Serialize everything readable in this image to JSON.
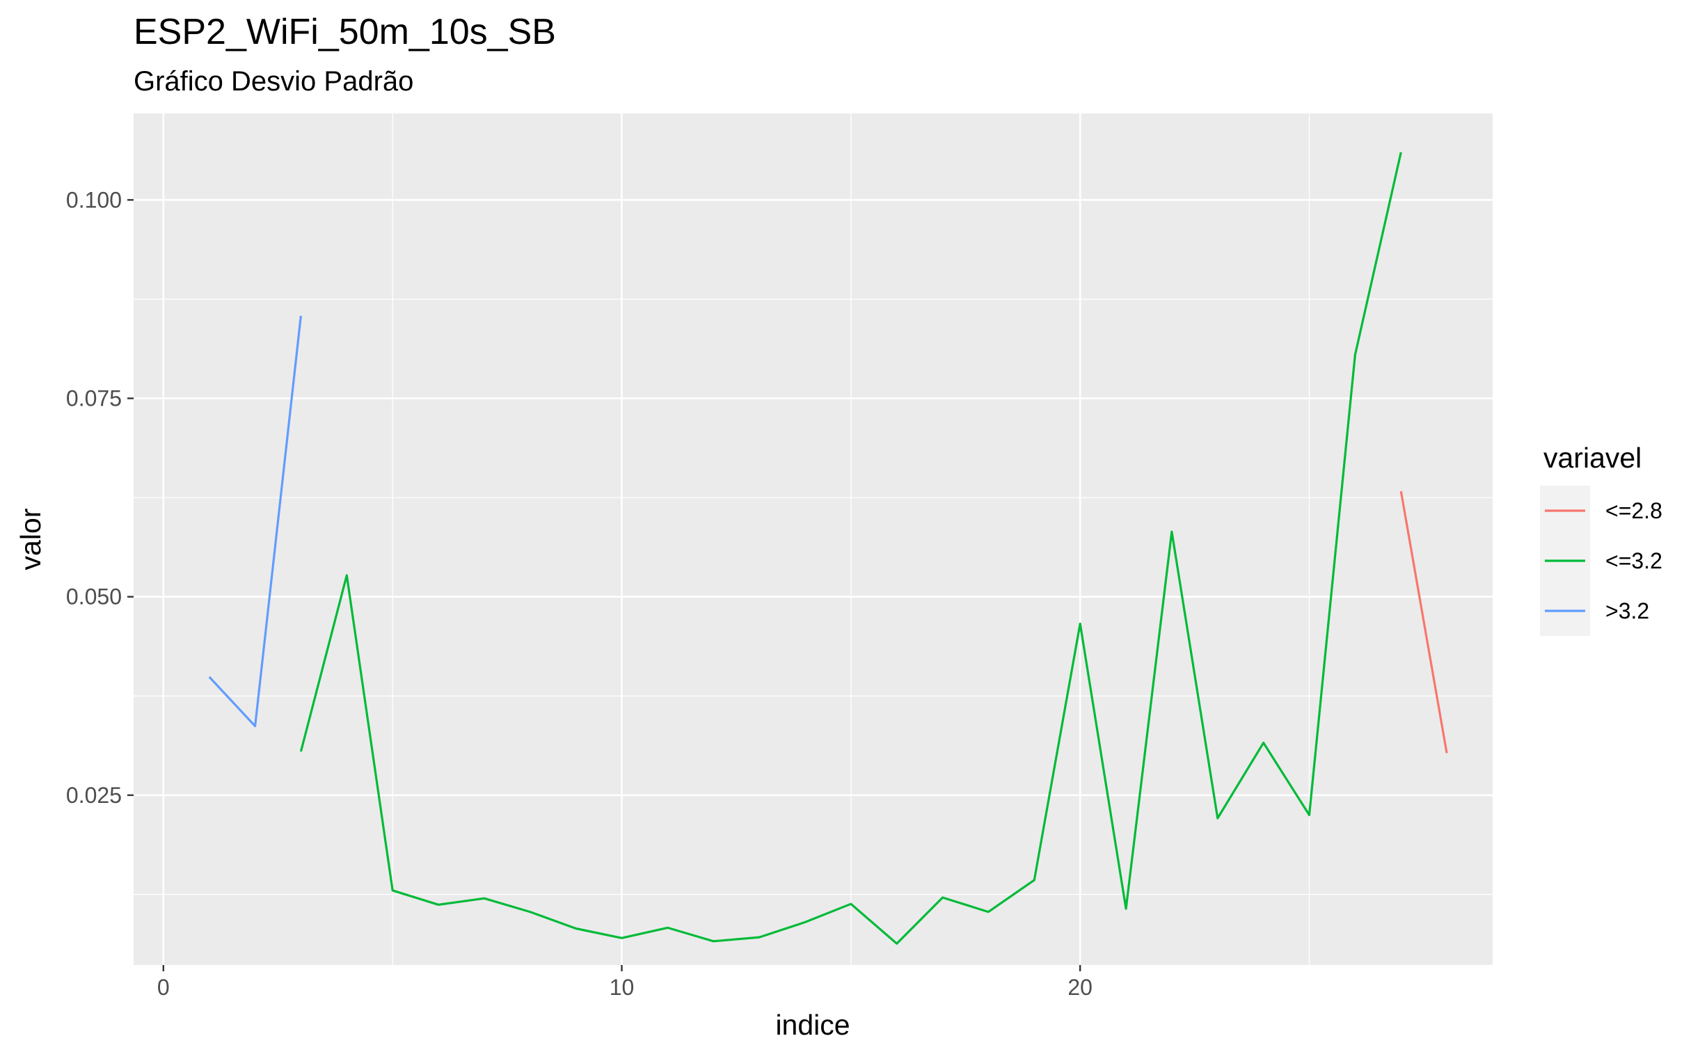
{
  "chart_data": {
    "type": "line",
    "title": "ESP2_WiFi_50m_10s_SB",
    "subtitle": "Gráfico Desvio Padrão",
    "xlabel": "indice",
    "ylabel": "valor",
    "xlim": [
      -0.65,
      29.0
    ],
    "ylim": [
      0.0036,
      0.1109
    ],
    "x_ticks": [
      0,
      10,
      20
    ],
    "x_tick_labels": [
      "0",
      "10",
      "20"
    ],
    "x_minor_ticks": [
      5,
      15,
      25
    ],
    "y_ticks": [
      0.025,
      0.05,
      0.075,
      0.1
    ],
    "y_tick_labels": [
      "0.025",
      "0.050",
      "0.075",
      "0.100"
    ],
    "y_minor_ticks": [
      0.0125,
      0.0375,
      0.0625,
      0.0875
    ],
    "grid": true,
    "legend_title": "variavel",
    "legend_position": "right",
    "series": [
      {
        "name": "<=2.8",
        "color": "#F8766D",
        "x": [
          27,
          28
        ],
        "y": [
          0.0633,
          0.0303
        ]
      },
      {
        "name": "<=3.2",
        "color": "#00BA38",
        "x": [
          3,
          4,
          5,
          6,
          7,
          8,
          9,
          10,
          11,
          12,
          13,
          14,
          15,
          16,
          17,
          18,
          19,
          20,
          21,
          22,
          23,
          24,
          25,
          26,
          27
        ],
        "y": [
          0.0305,
          0.0527,
          0.013,
          0.0112,
          0.012,
          0.0103,
          0.0082,
          0.007,
          0.0083,
          0.0066,
          0.0071,
          0.009,
          0.0113,
          0.0063,
          0.0121,
          0.0103,
          0.0143,
          0.0466,
          0.0107,
          0.0582,
          0.0221,
          0.0316,
          0.0225,
          0.0805,
          0.106
        ]
      },
      {
        "name": ">3.2",
        "color": "#619CFF",
        "x": [
          1,
          2,
          3
        ],
        "y": [
          0.0399,
          0.0337,
          0.0854
        ]
      }
    ]
  }
}
